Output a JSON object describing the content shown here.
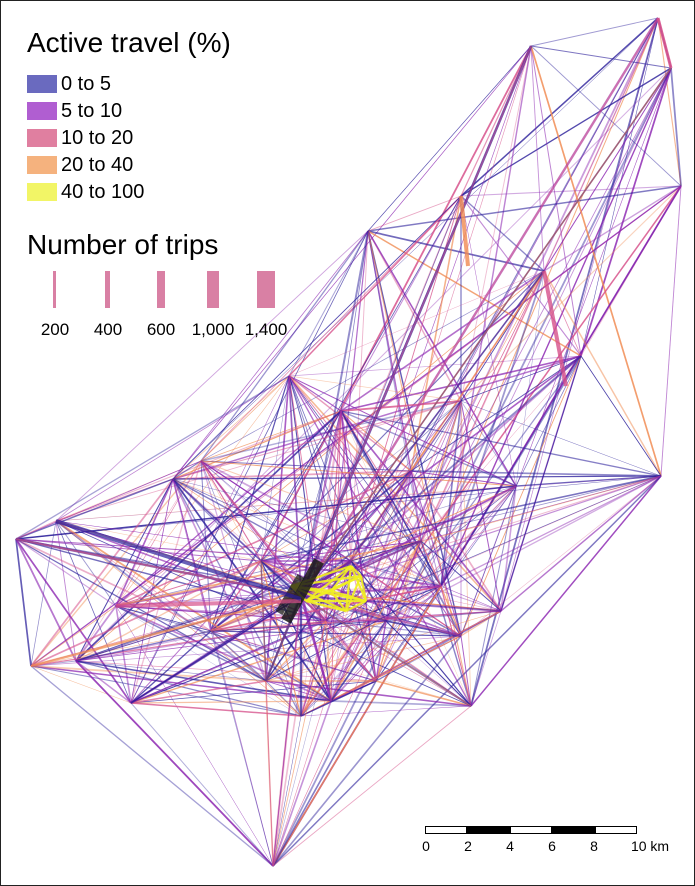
{
  "legend_colour": {
    "title": "Active travel (%)",
    "items": [
      {
        "label": "0 to 5",
        "color": "#6a6abf"
      },
      {
        "label": "5 to 10",
        "color": "#b05ed1"
      },
      {
        "label": "10 to 20",
        "color": "#e07fa0"
      },
      {
        "label": "20 to 40",
        "color": "#f5b27e"
      },
      {
        "label": "40 to 100",
        "color": "#f2f566"
      }
    ]
  },
  "legend_size": {
    "title": "Number of trips",
    "items": [
      {
        "label": "200",
        "value": 200
      },
      {
        "label": "400",
        "value": 400
      },
      {
        "label": "600",
        "value": 600
      },
      {
        "label": "1,000",
        "value": 1000
      },
      {
        "label": "1,400",
        "value": 1400
      }
    ]
  },
  "scale_bar": {
    "labels": [
      "0",
      "2",
      "4",
      "6",
      "8",
      "10 km"
    ]
  },
  "colors": {
    "line_0_5": "#2a1e9a",
    "line_5_10": "#8a22b0",
    "line_10_20": "#d6508a",
    "line_20_40": "#f08a50",
    "line_40_100": "#f0f020",
    "line_heavy": "#1a1a1a"
  }
}
